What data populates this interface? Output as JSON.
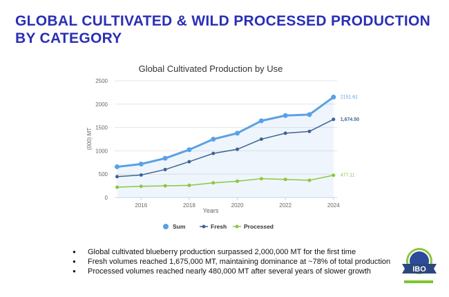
{
  "slide": {
    "title": "GLOBAL CULTIVATED & WILD PROCESSED PRODUCTION BY CATEGORY",
    "bullets": [
      "Global cultivated blueberry production surpassed 2,000,000 MT for the first time",
      "Fresh volumes reached 1,675,000 MT, maintaining dominance at ~78% of total production",
      "Processed volumes reached nearly 480,000 MT after several years of slower growth"
    ],
    "logo_text": "IBO"
  },
  "chart_data": {
    "type": "line",
    "title": "Global Cultivated Production by Use",
    "xlabel": "Years",
    "ylabel": "(000) MT",
    "x": [
      2015,
      2016,
      2017,
      2018,
      2019,
      2020,
      2021,
      2022,
      2023,
      2024
    ],
    "xticks": [
      "2016",
      "2018",
      "2020",
      "2022",
      "2024"
    ],
    "yticks": [
      "0",
      "500",
      "1000",
      "1500",
      "2000",
      "2500"
    ],
    "ylim": [
      0,
      2500
    ],
    "grid": true,
    "legend": "bottom",
    "series": [
      {
        "name": "Sum",
        "color": "#5aa0e6",
        "values": [
          659,
          718,
          841,
          1024,
          1250,
          1378,
          1644,
          1757,
          1777,
          2151.61
        ],
        "end_label": "2151.61"
      },
      {
        "name": "Fresh",
        "color": "#3f6494",
        "values": [
          448,
          482,
          600,
          768,
          945,
          1033,
          1250,
          1378,
          1417,
          1674.5
        ],
        "end_label": "1,674.50"
      },
      {
        "name": "Processed",
        "color": "#8cc63f",
        "values": [
          221,
          241,
          251,
          261,
          315,
          349,
          404,
          389,
          369,
          477.11
        ],
        "end_label": "477.11"
      }
    ]
  }
}
